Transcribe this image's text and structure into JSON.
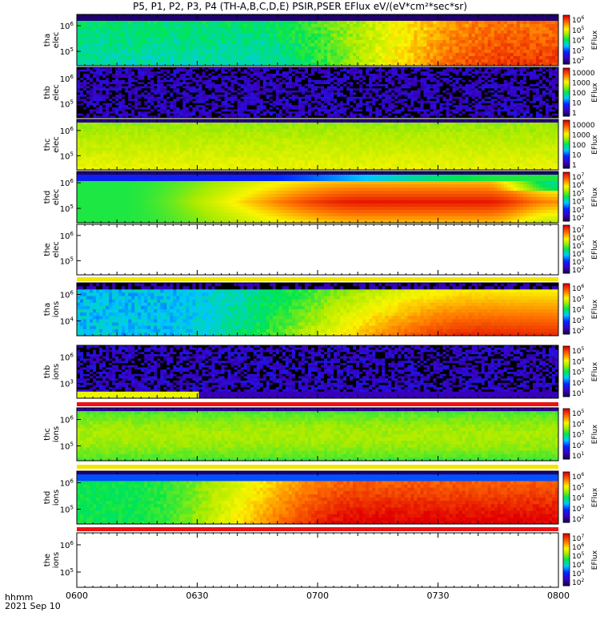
{
  "title": "P5, P1, P2, P3, P4 (TH-A,B,C,D,E) PSIR,PSER EFlux eV/(eV*cm²*sec*sr)",
  "footer": {
    "time_label": "hhmm",
    "date_label": "2021 Sep 10"
  },
  "chart_data": {
    "type": "heatmap",
    "title": "P5, P1, P2, P3, P4 (TH-A,B,C,D,E) PSIR,PSER EFlux eV/(eV*cm²*sec*sr)",
    "x_ticks": [
      "0600",
      "0630",
      "0700",
      "0730",
      "0800"
    ],
    "x_range": [
      "06:00",
      "08:00"
    ],
    "colorbar_label": "EFlux",
    "y_scale": "log",
    "panels": [
      {
        "probe": "tha",
        "species": "elec",
        "ylabel": [
          "tha",
          "elec"
        ],
        "y_ticks": [
          "10^6",
          "10^5"
        ],
        "colorbar_ticks": [
          "10^6",
          "10^5",
          "10^4",
          "10^3",
          "10^2"
        ],
        "pattern": "tha_elec",
        "has_data": true
      },
      {
        "probe": "thb",
        "species": "elec",
        "ylabel": [
          "thb",
          "elec"
        ],
        "y_ticks": [
          "10^6",
          "10^5"
        ],
        "colorbar_ticks": [
          "10000",
          "1000",
          "100",
          "10",
          "1"
        ],
        "pattern": "noise",
        "has_data": true
      },
      {
        "probe": "thc",
        "species": "elec",
        "ylabel": [
          "thc",
          "elec"
        ],
        "y_ticks": [
          "10^6",
          "10^5"
        ],
        "colorbar_ticks": [
          "10000",
          "1000",
          "100",
          "10",
          "1"
        ],
        "pattern": "thc_elec",
        "has_data": true
      },
      {
        "probe": "thd",
        "species": "elec",
        "ylabel": [
          "thd",
          "elec"
        ],
        "y_ticks": [
          "10^6",
          "10^5"
        ],
        "colorbar_ticks": [
          "10^7",
          "10^6",
          "10^5",
          "10^4",
          "10^3",
          "10^2"
        ],
        "pattern": "thd_elec",
        "has_data": true
      },
      {
        "probe": "the",
        "species": "elec",
        "ylabel": [
          "the",
          "elec"
        ],
        "y_ticks": [
          "10^6",
          "10^5"
        ],
        "colorbar_ticks": [
          "10^7",
          "10^6",
          "10^5",
          "10^4",
          "10^3",
          "10^2"
        ],
        "pattern": "empty",
        "has_data": false
      },
      {
        "probe": "tha",
        "species": "ions",
        "ylabel": [
          "tha",
          "ions"
        ],
        "y_ticks": [
          "10^6",
          "10^4"
        ],
        "colorbar_ticks": [
          "10^6",
          "10^5",
          "10^4",
          "10^3",
          "10^2"
        ],
        "pattern": "tha_ions",
        "has_data": true
      },
      {
        "probe": "thb",
        "species": "ions",
        "ylabel": [
          "thb",
          "ions"
        ],
        "y_ticks": [
          "10^6",
          "10^3"
        ],
        "colorbar_ticks": [
          "10^5",
          "10^4",
          "10^3",
          "10^2",
          "10^1"
        ],
        "pattern": "thb_ions",
        "has_data": true
      },
      {
        "probe": "thc",
        "species": "ions",
        "ylabel": [
          "thc",
          "ions"
        ],
        "y_ticks": [
          "10^6",
          "10^5"
        ],
        "colorbar_ticks": [
          "10^5",
          "10^4",
          "10^3",
          "10^2",
          "10^1"
        ],
        "pattern": "thc_ions",
        "has_data": true
      },
      {
        "probe": "thd",
        "species": "ions",
        "ylabel": [
          "thd",
          "ions"
        ],
        "y_ticks": [
          "10^6",
          "10^5"
        ],
        "colorbar_ticks": [
          "10^6",
          "10^5",
          "10^4",
          "10^3",
          "10^2"
        ],
        "pattern": "thd_ions",
        "has_data": true
      },
      {
        "probe": "the",
        "species": "ions",
        "ylabel": [
          "the",
          "ions"
        ],
        "y_ticks": [
          "10^6",
          "10^5"
        ],
        "colorbar_ticks": [
          "10^7",
          "10^6",
          "10^5",
          "10^4",
          "10^3",
          "10^2"
        ],
        "pattern": "empty",
        "has_data": false
      }
    ],
    "flag_bars": [
      {
        "after_panel": 4,
        "color": "#f2e600"
      },
      {
        "after_panel": 6,
        "color": "#ee1111"
      },
      {
        "after_panel": 7,
        "color": "#f2e600"
      },
      {
        "after_panel": 8,
        "color": "#ee1111"
      }
    ]
  }
}
